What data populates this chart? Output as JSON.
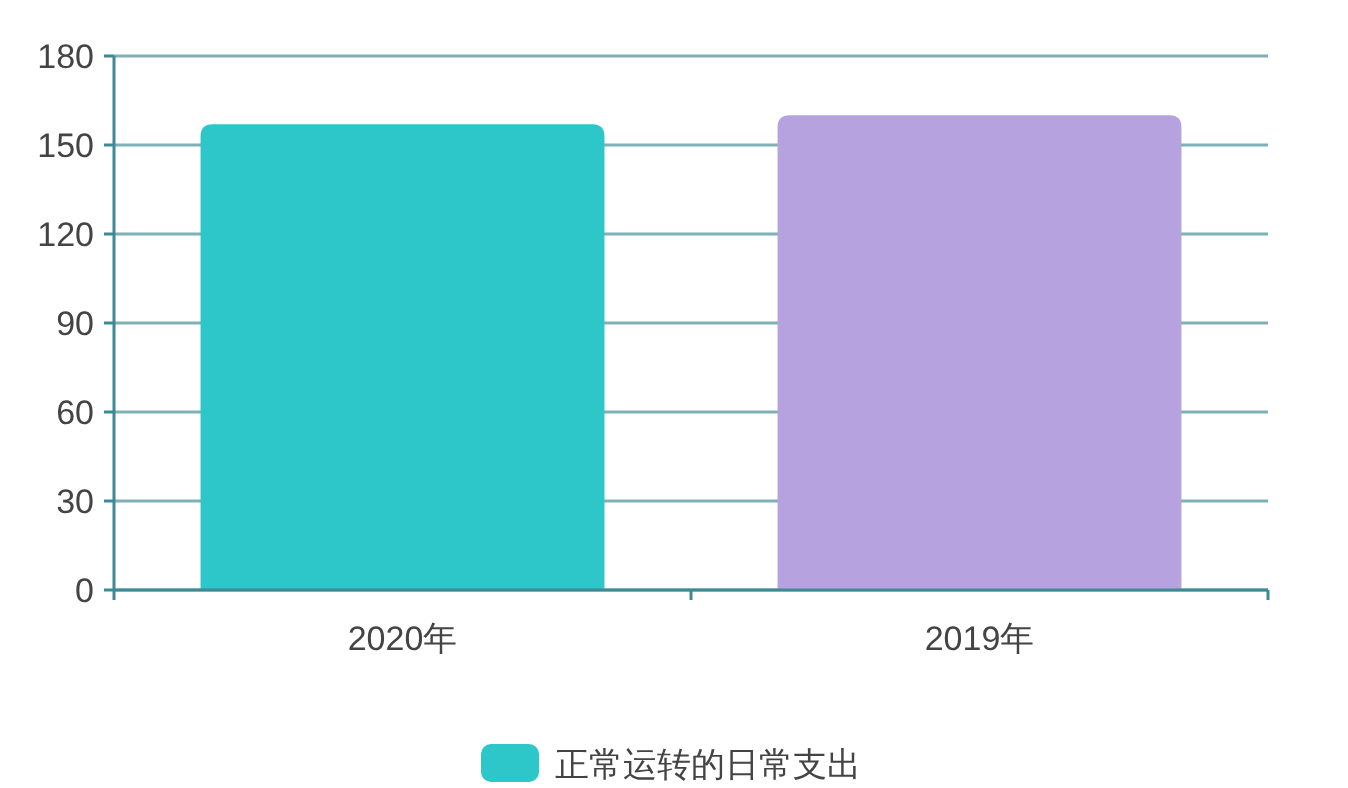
{
  "chart_data": {
    "type": "bar",
    "categories": [
      "2020年",
      "2019年"
    ],
    "series": [
      {
        "name": "正常运转的日常支出",
        "color": "#2ec7c9",
        "colors": [
          "#2ec7c9",
          "#b6a2de"
        ],
        "values": [
          157,
          160
        ]
      }
    ],
    "ylim": [
      0,
      180
    ],
    "yticks": [
      0,
      30,
      60,
      90,
      120,
      150,
      180
    ],
    "grid": "y",
    "legend": "bottom"
  }
}
